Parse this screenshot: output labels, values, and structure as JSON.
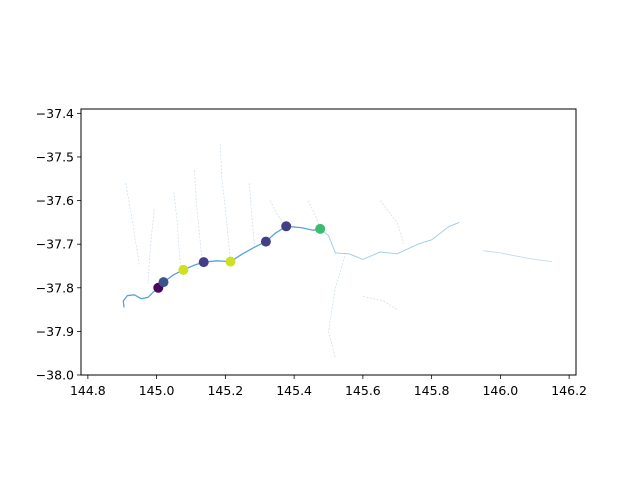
{
  "chart_data": {
    "type": "scatter",
    "title": "",
    "xlabel": "",
    "ylabel": "",
    "xlim": [
      144.78,
      146.22
    ],
    "ylim": [
      -38.0,
      -37.39
    ],
    "grid": false,
    "legend": "none",
    "x_ticks": [
      "144.8",
      "145.0",
      "145.2",
      "145.4",
      "145.6",
      "145.8",
      "146.0",
      "146.2"
    ],
    "x_tick_values": [
      144.8,
      145.0,
      145.2,
      145.4,
      145.6,
      145.8,
      146.0,
      146.2
    ],
    "y_ticks": [
      "−37.4",
      "−37.5",
      "−37.6",
      "−37.7",
      "−37.8",
      "−37.9",
      "−38.0"
    ],
    "y_tick_values": [
      -37.4,
      -37.5,
      -37.6,
      -37.7,
      -37.8,
      -37.9,
      -38.0
    ],
    "points": [
      {
        "x": 145.005,
        "y": -37.8,
        "color": "#46085c"
      },
      {
        "x": 145.02,
        "y": -37.787,
        "color": "#3b528b"
      },
      {
        "x": 145.078,
        "y": -37.759,
        "color": "#cde11d"
      },
      {
        "x": 145.137,
        "y": -37.741,
        "color": "#433e85"
      },
      {
        "x": 145.215,
        "y": -37.74,
        "color": "#cde11d"
      },
      {
        "x": 145.318,
        "y": -37.694,
        "color": "#433e85"
      },
      {
        "x": 145.377,
        "y": -37.659,
        "color": "#433e85"
      },
      {
        "x": 145.476,
        "y": -37.665,
        "color": "#3cbb75"
      }
    ],
    "river_main": [
      [
        144.905,
        -37.845
      ],
      [
        144.903,
        -37.83
      ],
      [
        144.915,
        -37.818
      ],
      [
        144.935,
        -37.816
      ],
      [
        144.955,
        -37.825
      ],
      [
        144.975,
        -37.822
      ],
      [
        144.99,
        -37.81
      ],
      [
        145.005,
        -37.8
      ],
      [
        145.02,
        -37.787
      ],
      [
        145.05,
        -37.77
      ],
      [
        145.078,
        -37.759
      ],
      [
        145.11,
        -37.748
      ],
      [
        145.137,
        -37.741
      ],
      [
        145.175,
        -37.738
      ],
      [
        145.215,
        -37.74
      ],
      [
        145.25,
        -37.722
      ],
      [
        145.285,
        -37.707
      ],
      [
        145.318,
        -37.694
      ],
      [
        145.345,
        -37.675
      ],
      [
        145.377,
        -37.659
      ],
      [
        145.42,
        -37.662
      ],
      [
        145.455,
        -37.668
      ],
      [
        145.476,
        -37.665
      ]
    ],
    "river_upper": [
      [
        145.476,
        -37.665
      ],
      [
        145.5,
        -37.68
      ],
      [
        145.52,
        -37.72
      ],
      [
        145.56,
        -37.722
      ],
      [
        145.6,
        -37.735
      ],
      [
        145.65,
        -37.718
      ],
      [
        145.7,
        -37.722
      ],
      [
        145.76,
        -37.7
      ],
      [
        145.8,
        -37.69
      ],
      [
        145.85,
        -37.66
      ],
      [
        145.88,
        -37.65
      ]
    ],
    "river_far": [
      [
        145.95,
        -37.715
      ],
      [
        146.0,
        -37.72
      ],
      [
        146.05,
        -37.728
      ],
      [
        146.1,
        -37.735
      ],
      [
        146.15,
        -37.74
      ]
    ],
    "tributaries": [
      [
        [
          144.993,
          -37.62
        ],
        [
          144.985,
          -37.68
        ],
        [
          144.98,
          -37.73
        ],
        [
          144.975,
          -37.79
        ]
      ],
      [
        [
          145.05,
          -37.58
        ],
        [
          145.06,
          -37.65
        ],
        [
          145.065,
          -37.71
        ],
        [
          145.07,
          -37.757
        ]
      ],
      [
        [
          145.11,
          -37.53
        ],
        [
          145.115,
          -37.6
        ],
        [
          145.125,
          -37.68
        ],
        [
          145.132,
          -37.74
        ]
      ],
      [
        [
          145.185,
          -37.47
        ],
        [
          145.19,
          -37.55
        ],
        [
          145.2,
          -37.62
        ],
        [
          145.21,
          -37.7
        ],
        [
          145.215,
          -37.738
        ]
      ],
      [
        [
          145.27,
          -37.56
        ],
        [
          145.275,
          -37.62
        ],
        [
          145.285,
          -37.705
        ]
      ],
      [
        [
          145.33,
          -37.6
        ],
        [
          145.35,
          -37.63
        ],
        [
          145.375,
          -37.658
        ]
      ],
      [
        [
          145.44,
          -37.6
        ],
        [
          145.46,
          -37.63
        ],
        [
          145.476,
          -37.664
        ]
      ],
      [
        [
          145.55,
          -37.72
        ],
        [
          145.52,
          -37.8
        ],
        [
          145.5,
          -37.9
        ],
        [
          145.52,
          -37.96
        ]
      ],
      [
        [
          145.65,
          -37.6
        ],
        [
          145.7,
          -37.65
        ],
        [
          145.72,
          -37.7
        ]
      ],
      [
        [
          145.6,
          -37.82
        ],
        [
          145.66,
          -37.83
        ],
        [
          145.7,
          -37.85
        ]
      ],
      [
        [
          144.91,
          -37.56
        ],
        [
          144.93,
          -37.65
        ],
        [
          144.95,
          -37.75
        ]
      ]
    ]
  }
}
